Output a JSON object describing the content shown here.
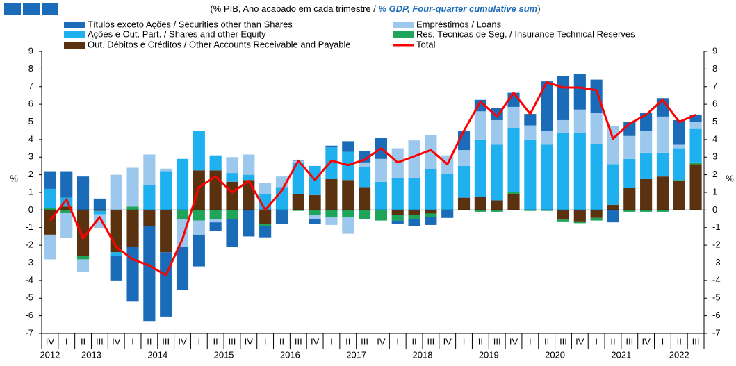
{
  "chart_data": {
    "type": "bar",
    "subtitle": [
      "(% PIB, Ano acabado em cada trimestre / ",
      "% GDP, Four-quarter cumulative sum",
      ")"
    ],
    "y_label": "%",
    "categories": [
      "IV",
      "I",
      "II",
      "III",
      "IV",
      "I",
      "II",
      "III",
      "IV",
      "I",
      "II",
      "III",
      "IV",
      "I",
      "II",
      "III",
      "IV",
      "I",
      "II",
      "III",
      "IV",
      "I",
      "II",
      "III",
      "IV",
      "I",
      "II",
      "III",
      "IV",
      "I",
      "II",
      "III",
      "IV",
      "I",
      "II",
      "III",
      "IV",
      "I",
      "II",
      "III"
    ],
    "years": [
      "2012",
      "2013",
      "2014",
      "2015",
      "2016",
      "2017",
      "2018",
      "2019",
      "2020",
      "2021",
      "2022"
    ],
    "series": [
      {
        "name": "Out. Débitos e Créditos / Other Accounts Receivable and Payable",
        "color": "#5a3210",
        "values": [
          -1.4,
          0.2,
          -2.6,
          -0.05,
          -2.4,
          -2.1,
          -0.9,
          -2.4,
          0,
          2.25,
          2.25,
          1.6,
          1.7,
          -0.8,
          0,
          0.9,
          0.85,
          1.75,
          1.7,
          1.3,
          0,
          -0.3,
          -0.3,
          -0.2,
          0,
          0.7,
          0.75,
          0.55,
          0.9,
          0,
          0,
          -0.55,
          -0.65,
          -0.45,
          0.3,
          1.25,
          1.75,
          1.9,
          1.65,
          2.6
        ]
      },
      {
        "name": "Res. Técnicas de Seg. / Insurance Technical Reserves",
        "color": "#1ea55a",
        "values": [
          0.1,
          -0.15,
          -0.2,
          0,
          0,
          0.2,
          0,
          0,
          -0.5,
          -0.6,
          -0.5,
          -0.5,
          0,
          -0.1,
          0,
          -0.05,
          -0.3,
          -0.4,
          -0.4,
          -0.5,
          -0.6,
          -0.3,
          -0.2,
          -0.2,
          0,
          0,
          -0.1,
          -0.1,
          0.1,
          -0.05,
          -0.05,
          -0.1,
          -0.1,
          -0.15,
          0,
          -0.1,
          -0.1,
          -0.1,
          0.05,
          0.1
        ]
      },
      {
        "name": "Ações e Out. Part. / Shares and other Equity",
        "color": "#1fb0ef",
        "values": [
          1.1,
          0.5,
          0,
          -0.2,
          -0.2,
          0,
          1.4,
          2.2,
          2.9,
          2.25,
          0.85,
          0.5,
          0.3,
          0.9,
          1.3,
          1.8,
          1.65,
          1.8,
          1.6,
          1.15,
          1.6,
          1.8,
          1.8,
          2.3,
          2.05,
          1.8,
          3.25,
          3.15,
          3.65,
          4.0,
          3.7,
          4.35,
          4.35,
          3.75,
          2.3,
          1.65,
          1.5,
          1.35,
          1.8,
          1.9
        ]
      },
      {
        "name": "Empréstimos / Loans",
        "color": "#9dc8ee",
        "values": [
          -1.4,
          -1.45,
          -0.7,
          -0.8,
          2.0,
          2.2,
          1.75,
          0.15,
          -1.6,
          -0.8,
          -0.2,
          0.9,
          1.15,
          0.65,
          0.6,
          0.1,
          -0.2,
          -0.45,
          -0.95,
          0.25,
          1.3,
          1.7,
          2.15,
          1.95,
          1.05,
          0.9,
          1.6,
          1.4,
          1.2,
          0.8,
          0.8,
          0.75,
          1.35,
          1.75,
          2.15,
          1.3,
          1.25,
          2.05,
          0.2,
          0.4
        ]
      },
      {
        "name": "Títulos exceto Ações / Securities other than Shares",
        "color": "#1b6cb8",
        "values": [
          1.0,
          1.5,
          1.9,
          0.65,
          -1.4,
          -3.1,
          -5.4,
          -3.65,
          -2.45,
          -1.8,
          -0.5,
          -1.6,
          -1.5,
          -0.65,
          -0.8,
          0.05,
          -0.3,
          0.1,
          0.6,
          0.65,
          1.2,
          -0.2,
          -0.4,
          -0.45,
          -0.45,
          1.1,
          0.65,
          0.7,
          0.8,
          0.65,
          2.8,
          2.5,
          2.0,
          1.9,
          -0.7,
          0.8,
          1.0,
          1.05,
          1.4,
          0.4
        ]
      },
      {
        "name": "Total",
        "color": "#ff0000",
        "line": true,
        "values": [
          -0.6,
          0.6,
          -1.6,
          -0.4,
          -2.1,
          -2.8,
          -3.15,
          -3.7,
          -1.65,
          1.3,
          1.9,
          1.0,
          1.65,
          0.0,
          1.1,
          2.8,
          1.7,
          2.8,
          2.55,
          2.85,
          3.5,
          2.7,
          3.05,
          3.4,
          2.6,
          4.5,
          6.15,
          5.3,
          6.65,
          5.45,
          7.25,
          6.95,
          6.95,
          6.8,
          4.05,
          4.9,
          5.4,
          6.25,
          5.0,
          5.4
        ]
      }
    ],
    "ylim": [
      -7,
      9
    ],
    "yticks": [
      -7,
      -6,
      -5,
      -4,
      -3,
      -2,
      -1,
      0,
      1,
      2,
      3,
      4,
      5,
      6,
      7,
      8,
      9
    ],
    "grid": false
  }
}
